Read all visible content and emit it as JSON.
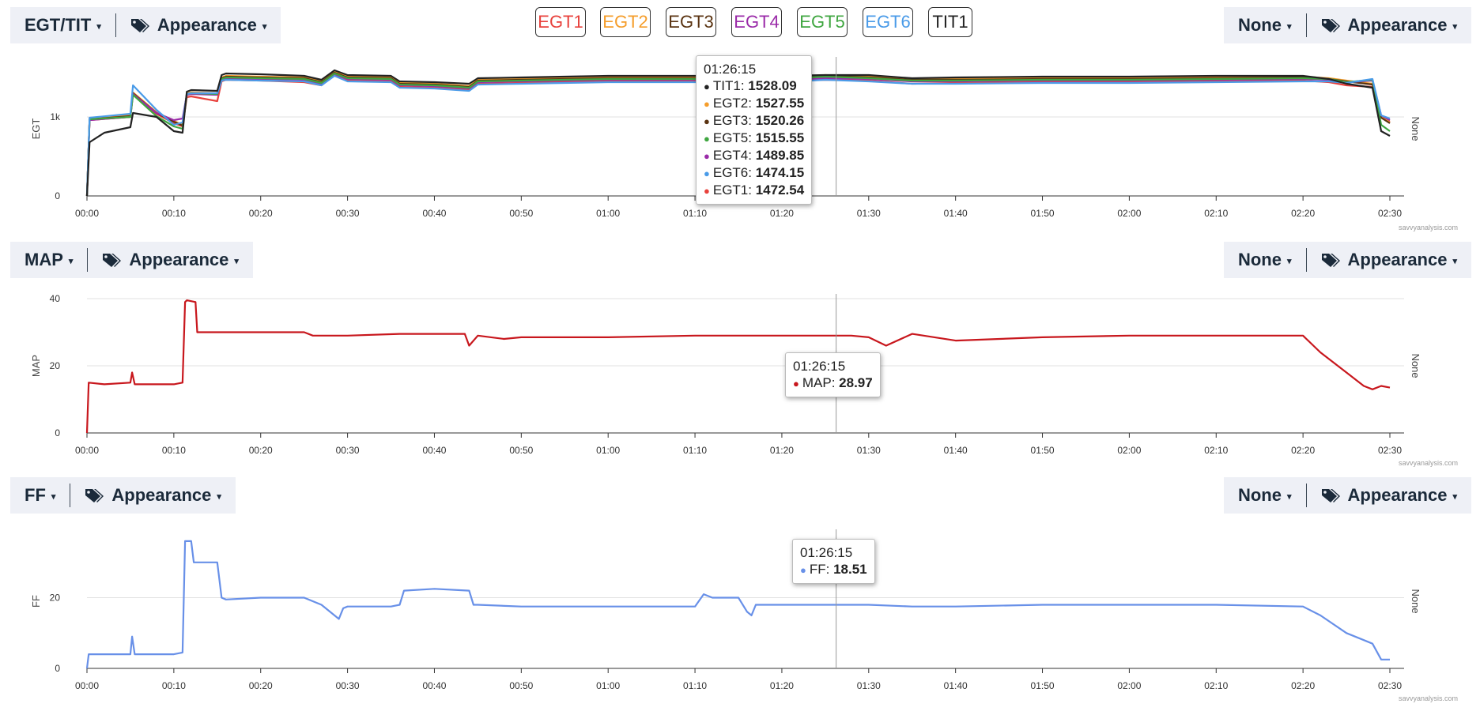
{
  "legend": [
    {
      "label": "EGT1",
      "color": "#e8413c"
    },
    {
      "label": "EGT2",
      "color": "#f59d2b"
    },
    {
      "label": "EGT3",
      "color": "#5a3311"
    },
    {
      "label": "EGT4",
      "color": "#9a2aa8"
    },
    {
      "label": "EGT5",
      "color": "#3fa640"
    },
    {
      "label": "EGT6",
      "color": "#4a9be8"
    },
    {
      "label": "TIT1",
      "color": "#222222"
    }
  ],
  "panels": [
    {
      "left_label": "EGT/TIT",
      "appearance_label": "Appearance",
      "right_label": "None",
      "right_appearance": "Appearance",
      "credit": "savvyanalysis.com"
    },
    {
      "left_label": "MAP",
      "appearance_label": "Appearance",
      "right_label": "None",
      "right_appearance": "Appearance",
      "credit": "savvyanalysis.com"
    },
    {
      "left_label": "FF",
      "appearance_label": "Appearance",
      "right_label": "None",
      "right_appearance": "Appearance",
      "credit": "savvyanalysis.com"
    }
  ],
  "tooltips": {
    "egt": {
      "time": "01:26:15",
      "rows": [
        {
          "label": "TIT1",
          "value": "1528.09",
          "color": "#222222"
        },
        {
          "label": "EGT2",
          "value": "1527.55",
          "color": "#f59d2b"
        },
        {
          "label": "EGT3",
          "value": "1520.26",
          "color": "#5a3311"
        },
        {
          "label": "EGT5",
          "value": "1515.55",
          "color": "#3fa640"
        },
        {
          "label": "EGT4",
          "value": "1489.85",
          "color": "#9a2aa8"
        },
        {
          "label": "EGT6",
          "value": "1474.15",
          "color": "#4a9be8"
        },
        {
          "label": "EGT1",
          "value": "1472.54",
          "color": "#e8413c"
        }
      ]
    },
    "map": {
      "time": "01:26:15",
      "rows": [
        {
          "label": "MAP",
          "value": "28.97",
          "color": "#c8171d"
        }
      ]
    },
    "ff": {
      "time": "01:26:15",
      "rows": [
        {
          "label": "FF",
          "value": "18.51",
          "color": "#6890e8"
        }
      ]
    }
  },
  "chart_data": [
    {
      "type": "line",
      "ylabel": "EGT",
      "y2label": "None",
      "ylim": [
        0,
        1700
      ],
      "yticks": [
        "0",
        "1k"
      ],
      "xticks": [
        "00:00",
        "00:10",
        "00:20",
        "00:30",
        "00:40",
        "00:50",
        "01:00",
        "01:10",
        "01:20",
        "01:30",
        "01:40",
        "01:50",
        "02:00",
        "02:10",
        "02:20",
        "02:30"
      ],
      "cursor_min": 86.25,
      "series": [
        {
          "name": "EGT1",
          "color": "#e8413c",
          "x": [
            0,
            0.3,
            5,
            5.3,
            8,
            10,
            11,
            11.5,
            12,
            15,
            15.5,
            16,
            20,
            25,
            27,
            28.5,
            30,
            35,
            36,
            40,
            44,
            45,
            50,
            55,
            60,
            70,
            75,
            80,
            85,
            90,
            95,
            100,
            110,
            120,
            130,
            140,
            143,
            145,
            148,
            149,
            150
          ],
          "y": [
            0,
            960,
            1000,
            1280,
            1040,
            920,
            880,
            1250,
            1260,
            1200,
            1450,
            1470,
            1460,
            1440,
            1400,
            1530,
            1460,
            1450,
            1380,
            1370,
            1340,
            1420,
            1430,
            1440,
            1450,
            1450,
            1440,
            1450,
            1470,
            1460,
            1420,
            1430,
            1440,
            1440,
            1450,
            1460,
            1440,
            1400,
            1380,
            1000,
            940
          ]
        },
        {
          "name": "EGT2",
          "color": "#f59d2b",
          "x": [
            0,
            0.3,
            5,
            5.3,
            8,
            10,
            11,
            11.5,
            12,
            15,
            15.5,
            16,
            20,
            25,
            27,
            28.5,
            30,
            35,
            36,
            40,
            44,
            45,
            50,
            55,
            60,
            70,
            75,
            80,
            85,
            90,
            95,
            100,
            110,
            120,
            130,
            140,
            143,
            145,
            148,
            149,
            150
          ],
          "y": [
            0,
            980,
            1020,
            1310,
            1060,
            950,
            900,
            1300,
            1310,
            1300,
            1500,
            1520,
            1510,
            1500,
            1450,
            1570,
            1510,
            1500,
            1430,
            1420,
            1390,
            1470,
            1480,
            1490,
            1500,
            1500,
            1490,
            1500,
            1530,
            1510,
            1480,
            1480,
            1490,
            1490,
            1500,
            1510,
            1490,
            1460,
            1420,
            1000,
            930
          ]
        },
        {
          "name": "EGT3",
          "color": "#5a3311",
          "x": [
            0,
            0.3,
            5,
            5.3,
            8,
            10,
            11,
            11.5,
            12,
            15,
            15.5,
            16,
            20,
            25,
            27,
            28.5,
            30,
            35,
            36,
            40,
            44,
            45,
            50,
            55,
            60,
            70,
            75,
            80,
            85,
            90,
            95,
            100,
            110,
            120,
            130,
            140,
            143,
            145,
            148,
            149,
            150
          ],
          "y": [
            0,
            970,
            1010,
            1300,
            1050,
            940,
            890,
            1290,
            1300,
            1290,
            1490,
            1510,
            1500,
            1490,
            1440,
            1560,
            1500,
            1490,
            1420,
            1410,
            1380,
            1460,
            1470,
            1480,
            1490,
            1490,
            1480,
            1490,
            1520,
            1500,
            1470,
            1470,
            1480,
            1480,
            1490,
            1500,
            1480,
            1450,
            1410,
            990,
            920
          ]
        },
        {
          "name": "EGT4",
          "color": "#9a2aa8",
          "x": [
            0,
            0.3,
            5,
            5.3,
            8,
            10,
            11,
            11.5,
            12,
            15,
            15.5,
            16,
            20,
            25,
            27,
            28.5,
            30,
            35,
            36,
            40,
            44,
            45,
            50,
            55,
            60,
            70,
            75,
            80,
            85,
            90,
            95,
            100,
            110,
            120,
            130,
            140,
            143,
            145,
            148,
            149,
            150
          ],
          "y": [
            0,
            960,
            1000,
            1290,
            1050,
            960,
            980,
            1280,
            1290,
            1280,
            1470,
            1490,
            1480,
            1470,
            1420,
            1540,
            1480,
            1470,
            1400,
            1390,
            1360,
            1440,
            1450,
            1460,
            1470,
            1470,
            1460,
            1470,
            1490,
            1480,
            1450,
            1450,
            1460,
            1460,
            1470,
            1480,
            1470,
            1440,
            1460,
            1020,
            960
          ]
        },
        {
          "name": "EGT5",
          "color": "#3fa640",
          "x": [
            0,
            0.3,
            5,
            5.3,
            8,
            10,
            11,
            11.5,
            12,
            15,
            15.5,
            16,
            20,
            25,
            27,
            28.5,
            30,
            35,
            36,
            40,
            44,
            45,
            50,
            55,
            60,
            70,
            75,
            80,
            85,
            90,
            95,
            100,
            110,
            120,
            130,
            140,
            143,
            145,
            148,
            149,
            150
          ],
          "y": [
            0,
            970,
            1000,
            1280,
            1010,
            880,
            850,
            1290,
            1300,
            1290,
            1480,
            1500,
            1490,
            1480,
            1430,
            1550,
            1490,
            1480,
            1410,
            1400,
            1370,
            1450,
            1460,
            1470,
            1480,
            1480,
            1470,
            1480,
            1510,
            1490,
            1460,
            1460,
            1470,
            1470,
            1480,
            1490,
            1480,
            1440,
            1470,
            900,
            820
          ]
        },
        {
          "name": "EGT6",
          "color": "#4a9be8",
          "x": [
            0,
            0.3,
            5,
            5.3,
            8,
            10,
            11,
            11.5,
            12,
            15,
            15.5,
            16,
            20,
            25,
            27,
            28.5,
            30,
            35,
            36,
            40,
            44,
            45,
            50,
            55,
            60,
            70,
            75,
            80,
            85,
            90,
            95,
            100,
            110,
            120,
            130,
            140,
            143,
            145,
            148,
            149,
            150
          ],
          "y": [
            0,
            990,
            1040,
            1400,
            1090,
            900,
            930,
            1290,
            1300,
            1300,
            1460,
            1470,
            1460,
            1450,
            1400,
            1520,
            1450,
            1440,
            1370,
            1360,
            1330,
            1410,
            1420,
            1430,
            1440,
            1440,
            1430,
            1440,
            1470,
            1450,
            1420,
            1420,
            1430,
            1430,
            1440,
            1450,
            1450,
            1430,
            1480,
            1020,
            980
          ]
        },
        {
          "name": "TIT1",
          "color": "#222222",
          "x": [
            0,
            0.3,
            2,
            5,
            5.3,
            8,
            10,
            11,
            11.5,
            12,
            15,
            15.5,
            16,
            20,
            25,
            27,
            28.5,
            30,
            35,
            36,
            40,
            44,
            45,
            50,
            55,
            60,
            70,
            75,
            80,
            85,
            90,
            95,
            100,
            110,
            120,
            130,
            140,
            143,
            145,
            148,
            149,
            150
          ],
          "y": [
            0,
            680,
            800,
            870,
            1050,
            1000,
            820,
            800,
            1320,
            1340,
            1330,
            1530,
            1550,
            1540,
            1520,
            1470,
            1590,
            1530,
            1520,
            1450,
            1440,
            1420,
            1490,
            1500,
            1510,
            1520,
            1520,
            1510,
            1520,
            1530,
            1530,
            1490,
            1500,
            1510,
            1510,
            1520,
            1520,
            1480,
            1420,
            1370,
            820,
            760
          ]
        }
      ]
    },
    {
      "type": "line",
      "ylabel": "MAP",
      "y2label": "None",
      "ylim": [
        0,
        40
      ],
      "yticks": [
        "0",
        "20",
        "40"
      ],
      "xticks": [
        "00:00",
        "00:10",
        "00:20",
        "00:30",
        "00:40",
        "00:50",
        "01:00",
        "01:10",
        "01:20",
        "01:30",
        "01:40",
        "01:50",
        "02:00",
        "02:10",
        "02:20",
        "02:30"
      ],
      "cursor_min": 86.25,
      "series": [
        {
          "name": "MAP",
          "color": "#c8171d",
          "x": [
            0,
            0.2,
            2,
            5,
            5.2,
            5.5,
            10,
            11,
            11.3,
            11.5,
            12.5,
            12.7,
            20,
            25,
            26,
            30,
            36,
            40,
            43.5,
            44,
            45,
            48,
            50,
            60,
            70,
            80,
            88,
            90,
            92,
            95,
            100,
            110,
            120,
            130,
            140,
            142,
            145,
            147,
            148,
            149,
            150
          ],
          "y": [
            0,
            15,
            14.5,
            15,
            18,
            14.5,
            14.5,
            15,
            39,
            39.5,
            39,
            30,
            30,
            30,
            29,
            29,
            29.5,
            29.5,
            29.5,
            26,
            29,
            28,
            28.5,
            28.5,
            29,
            29,
            29,
            28.5,
            26,
            29.5,
            27.5,
            28.5,
            29,
            29,
            29,
            24,
            18,
            14,
            13,
            14,
            13.5
          ]
        }
      ]
    },
    {
      "type": "line",
      "ylabel": "FF",
      "y2label": "None",
      "ylim": [
        0,
        38
      ],
      "yticks": [
        "0",
        "20"
      ],
      "xticks": [
        "00:00",
        "00:10",
        "00:20",
        "00:30",
        "00:40",
        "00:50",
        "01:00",
        "01:10",
        "01:20",
        "01:30",
        "01:40",
        "01:50",
        "02:00",
        "02:10",
        "02:20",
        "02:30"
      ],
      "cursor_min": 86.25,
      "series": [
        {
          "name": "FF",
          "color": "#6890e8",
          "x": [
            0,
            0.2,
            5,
            5.2,
            5.5,
            10,
            11,
            11.3,
            12,
            12.3,
            15,
            15.5,
            16,
            20,
            25,
            27,
            29,
            29.5,
            30,
            35,
            36,
            36.5,
            40,
            44,
            44.5,
            45,
            50,
            60,
            70,
            71,
            72,
            75,
            76,
            76.5,
            77,
            80,
            90,
            95,
            100,
            110,
            120,
            130,
            140,
            142,
            145,
            147,
            148,
            149,
            150
          ],
          "y": [
            0,
            4,
            4,
            9,
            4,
            4,
            4.5,
            36,
            36,
            30,
            30,
            20,
            19.5,
            20,
            20,
            18,
            14,
            17,
            17.5,
            17.5,
            18,
            22,
            22.5,
            22,
            18,
            18,
            17.5,
            17.5,
            17.5,
            21,
            20,
            20,
            16,
            15,
            18,
            18,
            18,
            17.5,
            17.5,
            18,
            18,
            18,
            17.5,
            15,
            10,
            8,
            7,
            2.5,
            2.5
          ]
        }
      ]
    }
  ]
}
